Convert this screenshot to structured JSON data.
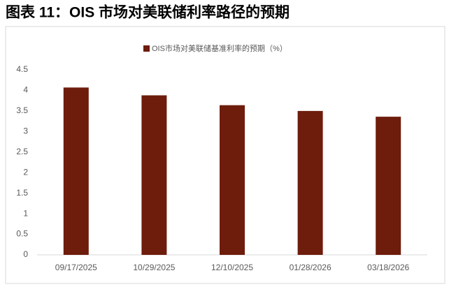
{
  "chart_data": {
    "type": "bar",
    "title": "图表 11：OIS 市场对美联储利率路径的预期",
    "categories": [
      "09/17/2025",
      "10/29/2025",
      "12/10/2025",
      "01/28/2026",
      "03/18/2026"
    ],
    "series": [
      {
        "name": "OIS市场对美联储基准利率的预期（%）",
        "color": "#6e1c0c",
        "values": [
          4.07,
          3.88,
          3.64,
          3.5,
          3.36
        ]
      }
    ],
    "ylim": [
      0,
      4.5
    ],
    "yticks": [
      0,
      0.5,
      1,
      1.5,
      2,
      2.5,
      3,
      3.5,
      4,
      4.5
    ],
    "grid": false,
    "legend": "top"
  }
}
